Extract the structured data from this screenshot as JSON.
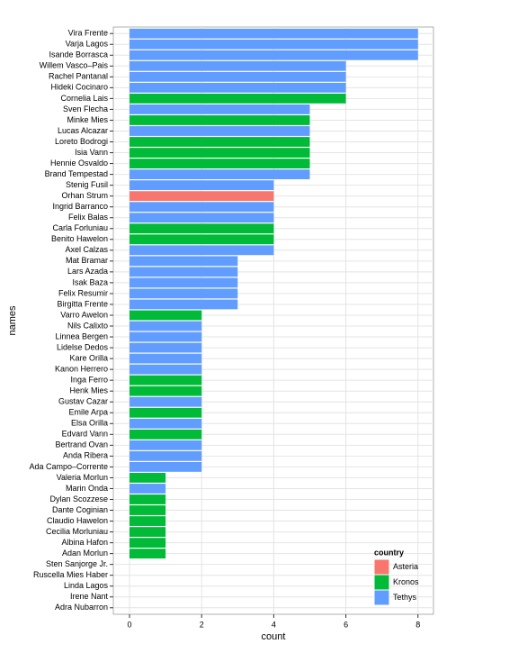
{
  "chart_data": {
    "type": "hbar",
    "x_label": "count",
    "y_label": "names",
    "categories": [
      "Vira Frente",
      "Varja Lagos",
      "Isande Borrasca",
      "Willem Vasco–Pais",
      "Rachel Pantanal",
      "Hideki Cocinaro",
      "Cornelia Lais",
      "Sven Flecha",
      "Minke Mies",
      "Lucas Alcazar",
      "Loreto Bodrogi",
      "Isia Vann",
      "Hennie Osvaldo",
      "Brand Tempestad",
      "Stenig Fusil",
      "Orhan Strum",
      "Ingrid Barranco",
      "Felix Balas",
      "Carla Forluniau",
      "Benito Hawelon",
      "Axel Calzas",
      "Mat Bramar",
      "Lars Azada",
      "Isak Baza",
      "Felix Resumir",
      "Birgitta Frente",
      "Varro Awelon",
      "Nils Calixto",
      "Linnea Bergen",
      "Lidelse Dedos",
      "Kare Orilla",
      "Kanon Herrero",
      "Inga Ferro",
      "Henk Mies",
      "Gustav Cazar",
      "Emile Arpa",
      "Elsa Orilla",
      "Edvard Vann",
      "Bertrand Ovan",
      "Anda Ribera",
      "Ada Campo–Corrente",
      "Valeria Morlun",
      "Marin Onda",
      "Dylan Scozzese",
      "Dante Coginian",
      "Claudio Hawelon",
      "Cecilia Morluniau",
      "Albina Hafon",
      "Adan Morlun",
      "Sten Sanjorge Jr.",
      "Ruscella Mies Haber",
      "Linda Lagos",
      "Irene Nant",
      "Adra Nubarron"
    ],
    "values": [
      8,
      8,
      8,
      6,
      6,
      6,
      6,
      5,
      5,
      5,
      5,
      5,
      5,
      5,
      4,
      4,
      4,
      4,
      4,
      4,
      4,
      3,
      3,
      3,
      3,
      3,
      2,
      2,
      2,
      2,
      2,
      2,
      2,
      2,
      2,
      2,
      2,
      2,
      2,
      2,
      2,
      1,
      1,
      1,
      1,
      1,
      1,
      1,
      1,
      0,
      0,
      0,
      0,
      0
    ],
    "groups": [
      "Tethys",
      "Tethys",
      "Tethys",
      "Tethys",
      "Tethys",
      "Tethys",
      "Kronos",
      "Tethys",
      "Kronos",
      "Tethys",
      "Kronos",
      "Kronos",
      "Kronos",
      "Tethys",
      "Tethys",
      "Asteria",
      "Tethys",
      "Tethys",
      "Kronos",
      "Kronos",
      "Tethys",
      "Tethys",
      "Tethys",
      "Tethys",
      "Tethys",
      "Tethys",
      "Kronos",
      "Tethys",
      "Tethys",
      "Tethys",
      "Tethys",
      "Tethys",
      "Kronos",
      "Kronos",
      "Tethys",
      "Kronos",
      "Tethys",
      "Kronos",
      "Tethys",
      "Tethys",
      "Tethys",
      "Kronos",
      "Tethys",
      "Kronos",
      "Kronos",
      "Kronos",
      "Kronos",
      "Kronos",
      "Kronos",
      null,
      null,
      null,
      null,
      null
    ],
    "legend": {
      "title": "country",
      "entries": [
        {
          "name": "Asteria",
          "color": "#f8766d"
        },
        {
          "name": "Kronos",
          "color": "#00ba38"
        },
        {
          "name": "Tethys",
          "color": "#619cff"
        }
      ]
    },
    "xlim": [
      -0.45,
      8.43
    ],
    "xticks": [
      0,
      2,
      4,
      6,
      8
    ],
    "grid": true
  }
}
